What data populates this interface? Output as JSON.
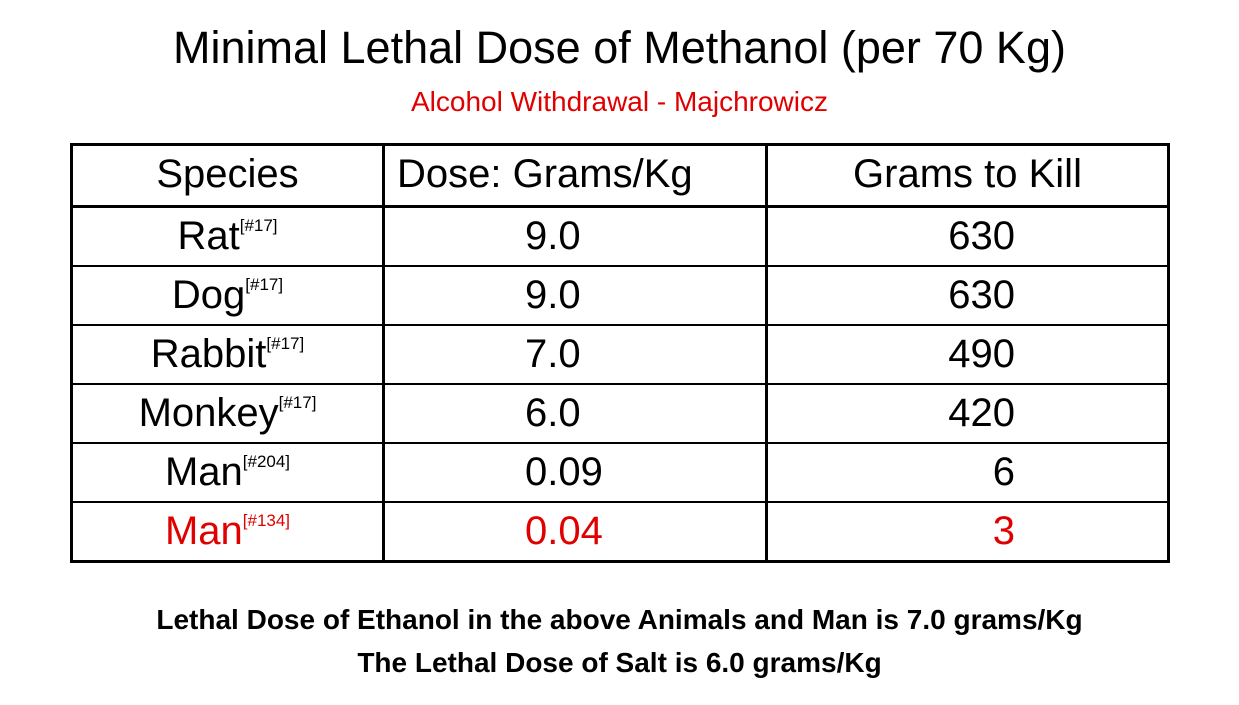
{
  "header": {
    "title": "Minimal Lethal Dose of Methanol (per 70 Kg)",
    "subtitle": "Alcohol Withdrawal - Majchrowicz"
  },
  "table": {
    "columns": [
      "Species",
      "Dose: Grams/Kg",
      "Grams to Kill"
    ],
    "rows": [
      {
        "species": "Rat",
        "ref": "[#17]",
        "dose": "9.0",
        "grams": "630"
      },
      {
        "species": "Dog",
        "ref": "[#17]",
        "dose": "9.0",
        "grams": "630"
      },
      {
        "species": "Rabbit",
        "ref": "[#17]",
        "dose": "7.0",
        "grams": "490"
      },
      {
        "species": "Monkey",
        "ref": "[#17]",
        "dose": "6.0",
        "grams": "420"
      },
      {
        "species": "Man",
        "ref": "[#204]",
        "dose": "0.09",
        "grams": "6"
      },
      {
        "species": "Man",
        "ref": "[#134]",
        "dose": "0.04",
        "grams": "3"
      }
    ]
  },
  "footer": [
    "Lethal Dose of Ethanol in the above Animals and Man is 7.0 grams/Kg",
    "The Lethal Dose of Salt is 6.0 grams/Kg"
  ]
}
